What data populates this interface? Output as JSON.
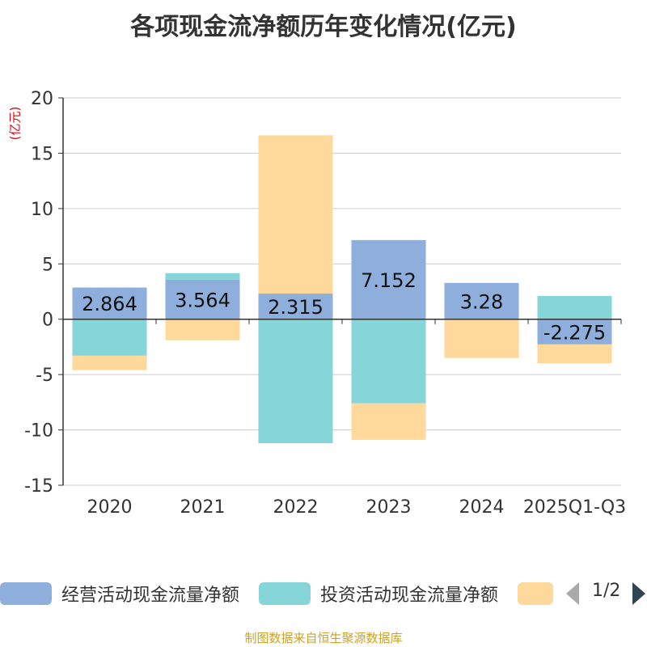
{
  "chart_data": {
    "type": "bar",
    "stacked": true,
    "title": "各项现金流净额历年变化情况(亿元)",
    "unit_label": "(亿元)",
    "categories": [
      "2020",
      "2021",
      "2022",
      "2023",
      "2024",
      "2025Q1-Q3"
    ],
    "ylim": [
      -15,
      20
    ],
    "yticks": [
      20,
      15,
      10,
      5,
      0,
      -5,
      -10,
      -15
    ],
    "grid": true,
    "legend_position": "bottom",
    "series": [
      {
        "name": "经营活动现金流量净额",
        "color": "#8eaedb",
        "values": [
          2.864,
          3.564,
          2.315,
          7.152,
          3.28,
          -2.275
        ]
      },
      {
        "name": "投资活动现金流量净额",
        "color": "#86d5d8",
        "values": [
          -3.3,
          0.6,
          -11.2,
          -7.6,
          0.0,
          2.1
        ]
      },
      {
        "name": "",
        "color": "#ffd89b",
        "values": [
          -1.3,
          -1.9,
          14.3,
          -3.3,
          -3.5,
          -1.7
        ]
      }
    ],
    "data_labels": [
      "2.864",
      "3.564",
      "2.315",
      "7.152",
      "3.28",
      "-2.275"
    ]
  },
  "legend": {
    "page": "1/2"
  },
  "source": "制图数据来自恒生聚源数据库"
}
